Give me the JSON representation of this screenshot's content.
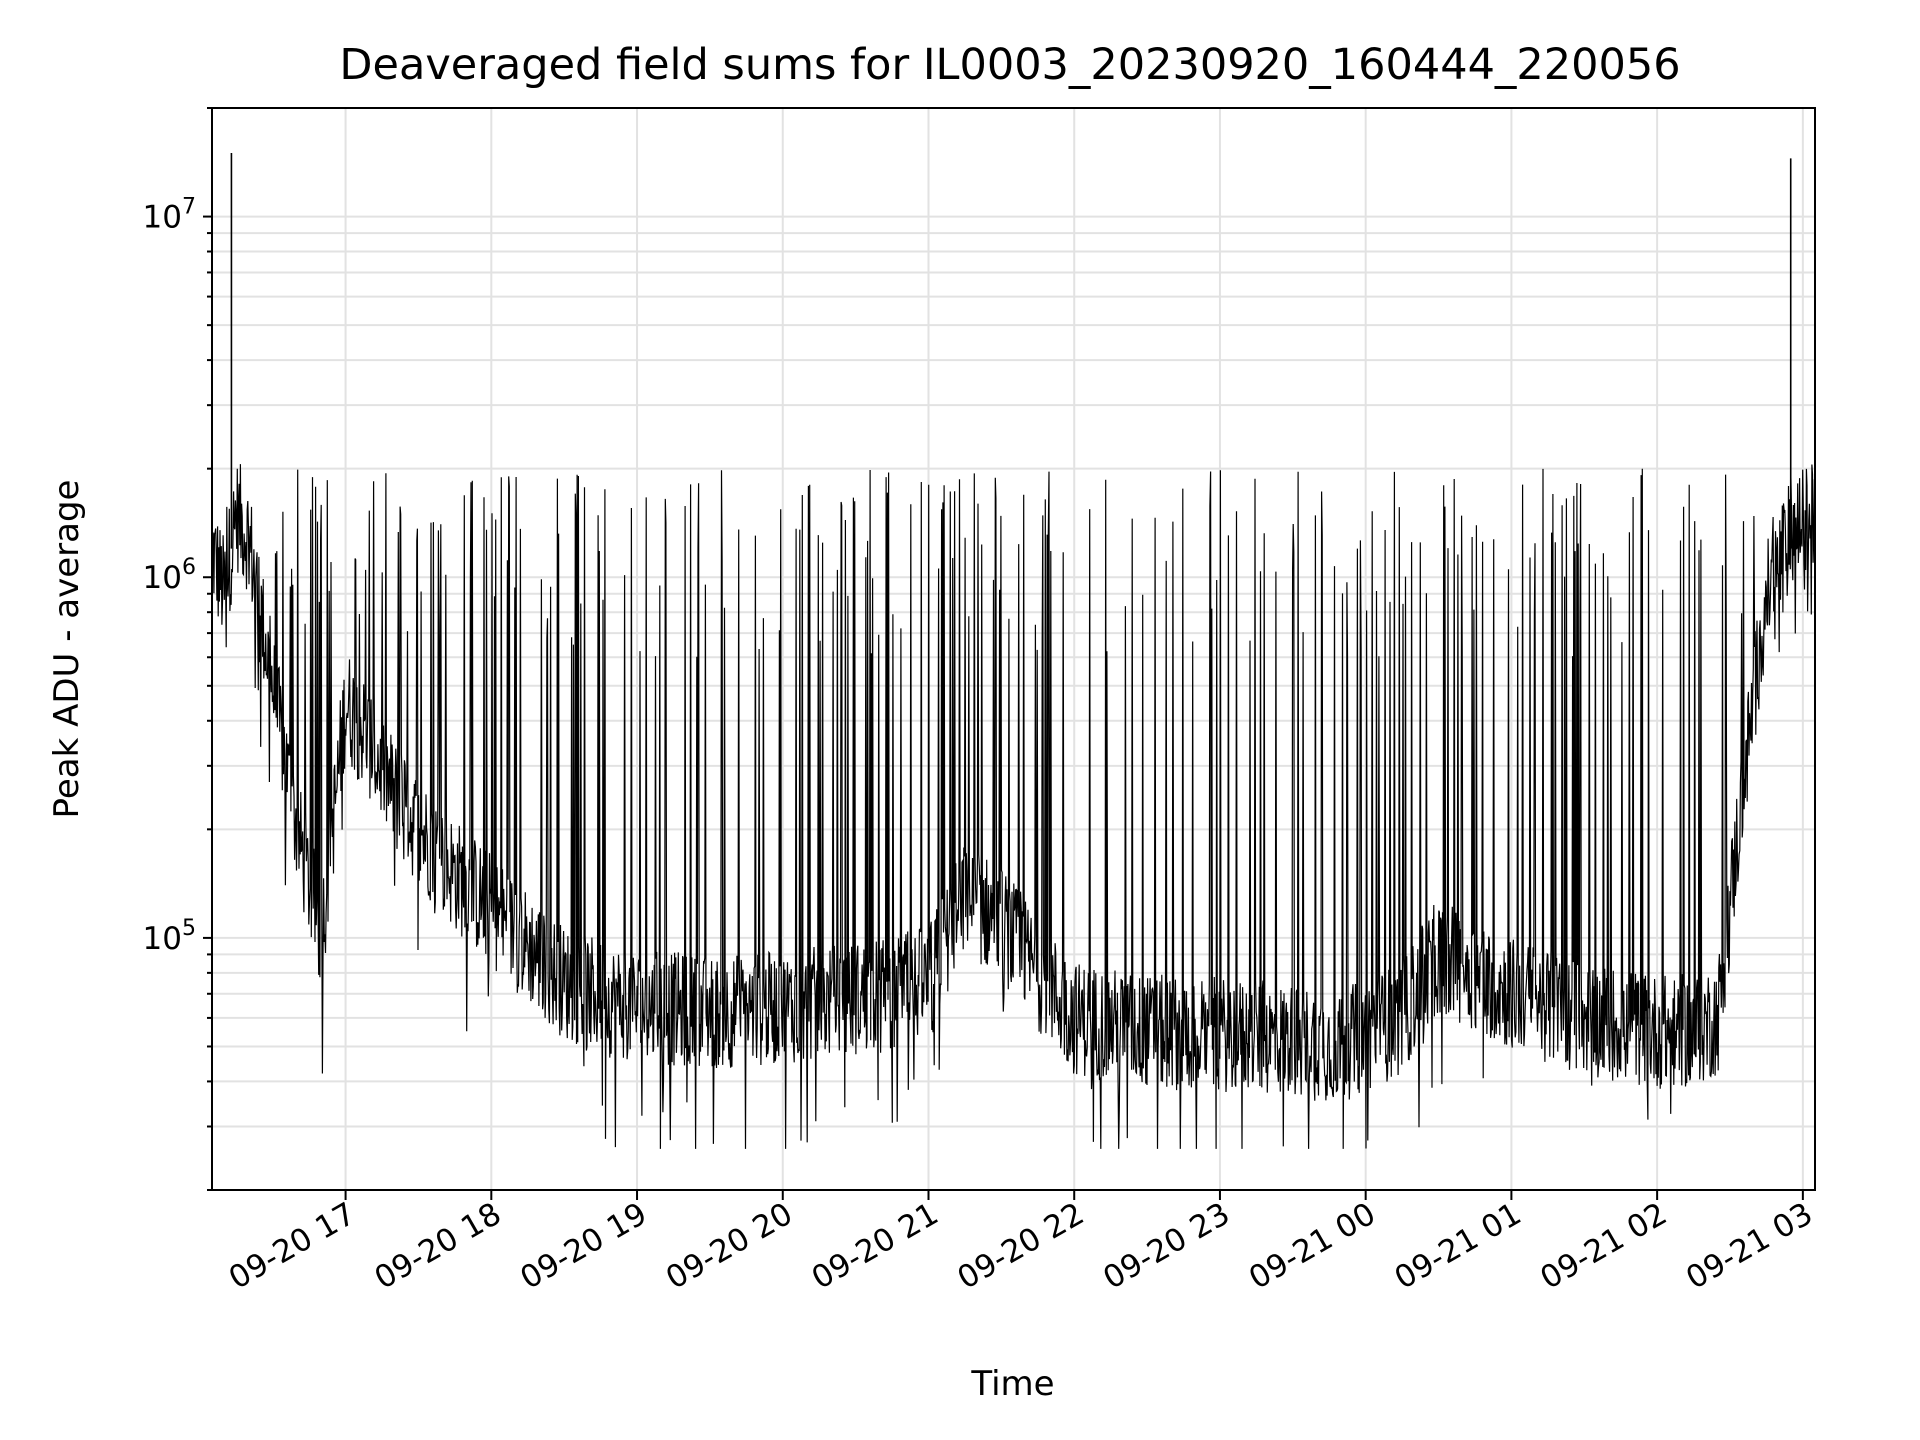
{
  "chart_data": {
    "type": "line",
    "title": "Deaveraged field sums for IL0003_20230920_160444_220056",
    "xlabel": "Time",
    "ylabel": "Peak ADU - average",
    "yscale": "log",
    "ylim": [
      20000,
      20000000
    ],
    "xlim": [
      "2023-09-20 16:05",
      "2023-09-21 03:05"
    ],
    "x_ticks": [
      "09-20 17",
      "09-20 18",
      "09-20 19",
      "09-20 20",
      "09-20 21",
      "09-20 22",
      "09-20 23",
      "09-21 00",
      "09-21 01",
      "09-21 02",
      "09-21 03"
    ],
    "y_ticks": [
      {
        "value": 100000,
        "base": "10",
        "exp": "5"
      },
      {
        "value": 1000000,
        "base": "10",
        "exp": "6"
      },
      {
        "value": 10000000,
        "base": "10",
        "exp": "7"
      }
    ],
    "grid": true,
    "line_color": "#000000",
    "series": [
      {
        "x": [
          "2023-09-20 16:05",
          "2023-09-20 16:10",
          "2023-09-20 16:15",
          "2023-09-20 16:20",
          "2023-09-20 16:25",
          "2023-09-20 16:30",
          "2023-09-20 16:40",
          "2023-09-20 16:50",
          "2023-09-20 17:00",
          "2023-09-20 17:10",
          "2023-09-20 17:20",
          "2023-09-20 17:30",
          "2023-09-20 17:45",
          "2023-09-20 18:00",
          "2023-09-20 18:15",
          "2023-09-20 18:30",
          "2023-09-20 18:45",
          "2023-09-20 19:00",
          "2023-09-20 19:30",
          "2023-09-20 20:00",
          "2023-09-20 20:30",
          "2023-09-20 21:00",
          "2023-09-20 21:15",
          "2023-09-20 21:30",
          "2023-09-20 21:45",
          "2023-09-20 22:00",
          "2023-09-20 22:30",
          "2023-09-20 23:00",
          "2023-09-20 23:30",
          "2023-09-20 23:50",
          "2023-09-21 00:15",
          "2023-09-21 00:30",
          "2023-09-21 01:00",
          "2023-09-21 01:30",
          "2023-09-21 02:00",
          "2023-09-21 02:15",
          "2023-09-21 02:25",
          "2023-09-21 02:35",
          "2023-09-21 02:45",
          "2023-09-21 02:55",
          "2023-09-21 03:05"
        ],
        "y": [
          1200000,
          900000,
          1500000,
          1300000,
          800000,
          500000,
          200000,
          100000,
          450000,
          350000,
          250000,
          200000,
          150000,
          120000,
          95000,
          75000,
          68000,
          65000,
          62000,
          64000,
          68000,
          75000,
          130000,
          110000,
          80000,
          60000,
          55000,
          54000,
          52000,
          50000,
          60000,
          90000,
          70000,
          60000,
          55000,
          55000,
          60000,
          250000,
          900000,
          1300000,
          1500000
        ]
      }
    ]
  }
}
